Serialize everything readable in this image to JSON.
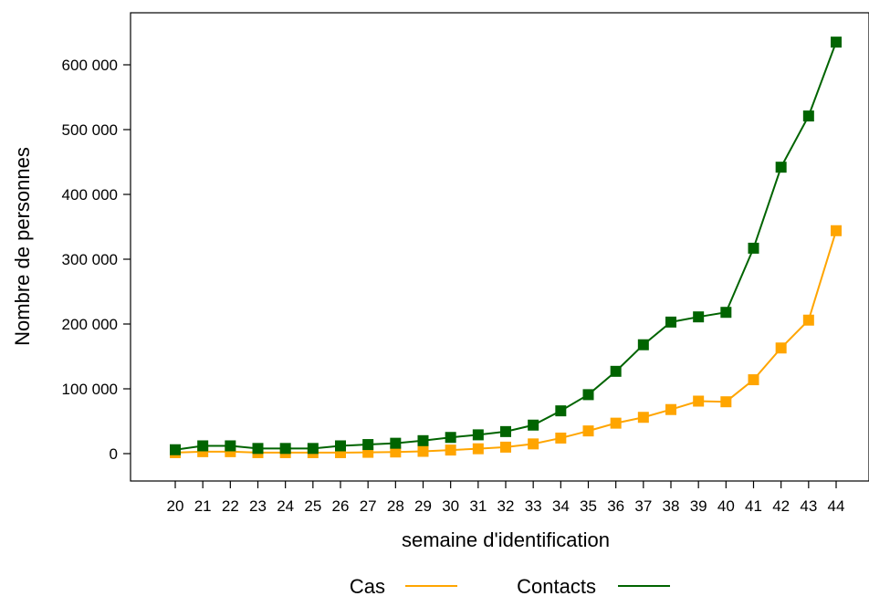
{
  "chart_data": {
    "type": "line",
    "title": "",
    "xlabel": "semaine d'identification",
    "ylabel": "Nombre de personnes",
    "x": [
      20,
      21,
      22,
      23,
      24,
      25,
      26,
      27,
      28,
      29,
      30,
      31,
      32,
      33,
      34,
      35,
      36,
      37,
      38,
      39,
      40,
      41,
      42,
      43,
      44
    ],
    "x_tick_labels": [
      "20",
      "21",
      "22",
      "23",
      "24",
      "25",
      "26",
      "27",
      "28",
      "29",
      "30",
      "31",
      "32",
      "33",
      "34",
      "35",
      "36",
      "37",
      "38",
      "39",
      "40",
      "41",
      "42",
      "43",
      "44"
    ],
    "ylim": [
      0,
      640000
    ],
    "y_ticks": [
      0,
      100000,
      200000,
      300000,
      400000,
      500000,
      600000
    ],
    "y_tick_labels": [
      "0",
      "100 000",
      "200 000",
      "300 000",
      "400 000",
      "500 000",
      "600 000"
    ],
    "grid": false,
    "legend_position": "bottom",
    "series": [
      {
        "name": "Cas",
        "color": "#FFA500",
        "marker": "square",
        "values": [
          1500,
          3000,
          3000,
          1500,
          1500,
          1500,
          1500,
          2000,
          2500,
          3500,
          5500,
          7500,
          10000,
          15000,
          24000,
          35000,
          47000,
          56000,
          68000,
          81000,
          80000,
          114000,
          163000,
          206000,
          344000
        ]
      },
      {
        "name": "Contacts",
        "color": "#006400",
        "marker": "square",
        "values": [
          6000,
          12000,
          12000,
          8000,
          8000,
          8000,
          12000,
          14000,
          16000,
          20000,
          25000,
          29000,
          34000,
          44000,
          66000,
          91000,
          127000,
          168000,
          203000,
          211000,
          218000,
          317000,
          442000,
          521000,
          635000
        ]
      }
    ]
  }
}
